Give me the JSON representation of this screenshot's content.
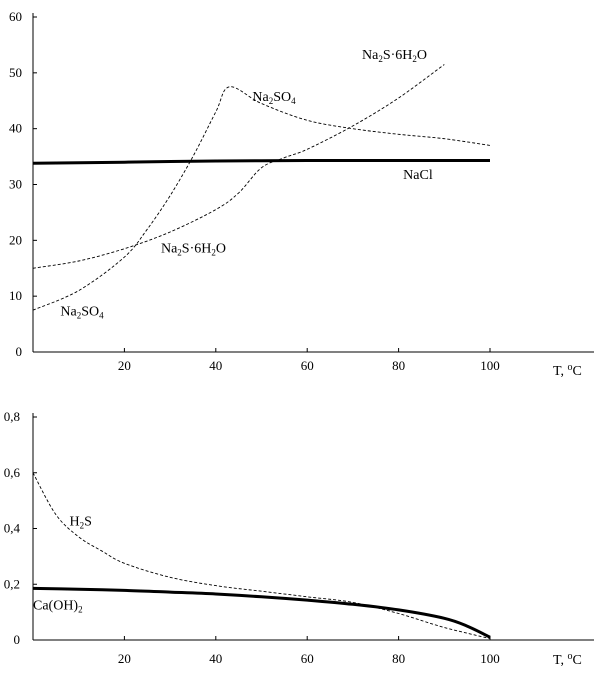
{
  "chart_data": [
    {
      "type": "line",
      "title": "",
      "xlabel": "T, °C",
      "ylabel": "",
      "xlim": [
        0,
        100
      ],
      "ylim": [
        0,
        60
      ],
      "x_ticks": [
        20,
        40,
        60,
        80,
        100
      ],
      "y_ticks": [
        0,
        10,
        20,
        30,
        40,
        50,
        60
      ],
      "grid": false,
      "series": [
        {
          "name": "NaCl",
          "style": "solid-thick",
          "x": [
            0,
            20,
            40,
            60,
            80,
            100
          ],
          "y": [
            33.8,
            34.0,
            34.2,
            34.3,
            34.3,
            34.3
          ]
        },
        {
          "name": "Na2SO4",
          "style": "dashed",
          "x": [
            0,
            10,
            20,
            25,
            30,
            35,
            40,
            43,
            50,
            60,
            70,
            80,
            90,
            100
          ],
          "y": [
            7.5,
            11,
            17,
            22,
            28,
            35,
            43,
            47.5,
            44.5,
            41.5,
            40,
            39,
            38.2,
            37
          ]
        },
        {
          "name": "Na2S·6H2O",
          "style": "dashed",
          "x": [
            0,
            10,
            20,
            30,
            40,
            45,
            50,
            55,
            60,
            70,
            80,
            90
          ],
          "y": [
            15,
            16.3,
            18.5,
            21.5,
            25.5,
            28.5,
            33,
            34.8,
            36.3,
            40.5,
            45.5,
            51.5
          ]
        }
      ],
      "annotations": [
        {
          "text": "Na",
          "sub1": "2",
          "mid": "S·6H",
          "sub2": "2",
          "end": "O",
          "x": 72,
          "y": 52.5
        },
        {
          "text": "Na",
          "sub1": "2",
          "mid": "SO",
          "sub2": "4",
          "end": "",
          "x": 48,
          "y": 45
        },
        {
          "text": "NaCl",
          "x": 81,
          "y": 31
        },
        {
          "text": "Na",
          "sub1": "2",
          "mid": "S·6H",
          "sub2": "2",
          "end": "O",
          "x": 28,
          "y": 17.8
        },
        {
          "text": "Na",
          "sub1": "2",
          "mid": "SO",
          "sub2": "4",
          "end": "",
          "x": 6,
          "y": 6.5
        }
      ]
    },
    {
      "type": "line",
      "title": "",
      "xlabel": "T, °C",
      "ylabel": "",
      "xlim": [
        0,
        100
      ],
      "ylim": [
        0,
        0.8
      ],
      "x_ticks": [
        20,
        40,
        60,
        80,
        100
      ],
      "y_ticks": [
        "0",
        "0,2",
        "0,4",
        "0,6",
        "0,8"
      ],
      "grid": false,
      "series": [
        {
          "name": "Ca(OH)2",
          "style": "solid-thick",
          "x": [
            0,
            10,
            20,
            30,
            40,
            50,
            60,
            70,
            80,
            90,
            95,
            100
          ],
          "y": [
            0.185,
            0.182,
            0.178,
            0.172,
            0.165,
            0.155,
            0.143,
            0.128,
            0.108,
            0.078,
            0.05,
            0.01
          ]
        },
        {
          "name": "H2S",
          "style": "dashed",
          "x": [
            0,
            5,
            10,
            15,
            20,
            30,
            40,
            50,
            60,
            70,
            80,
            90,
            100
          ],
          "y": [
            0.6,
            0.45,
            0.37,
            0.32,
            0.275,
            0.225,
            0.195,
            0.175,
            0.155,
            0.135,
            0.095,
            0.045,
            0.005
          ]
        }
      ],
      "annotations": [
        {
          "text": "H",
          "sub1": "2",
          "mid": "S",
          "sub2": "",
          "end": "",
          "x": 8,
          "y": 0.41
        },
        {
          "text": "Ca(OH)",
          "sub1": "2",
          "mid": "",
          "sub2": "",
          "end": "",
          "x": 0,
          "y": 0.11
        }
      ]
    }
  ]
}
